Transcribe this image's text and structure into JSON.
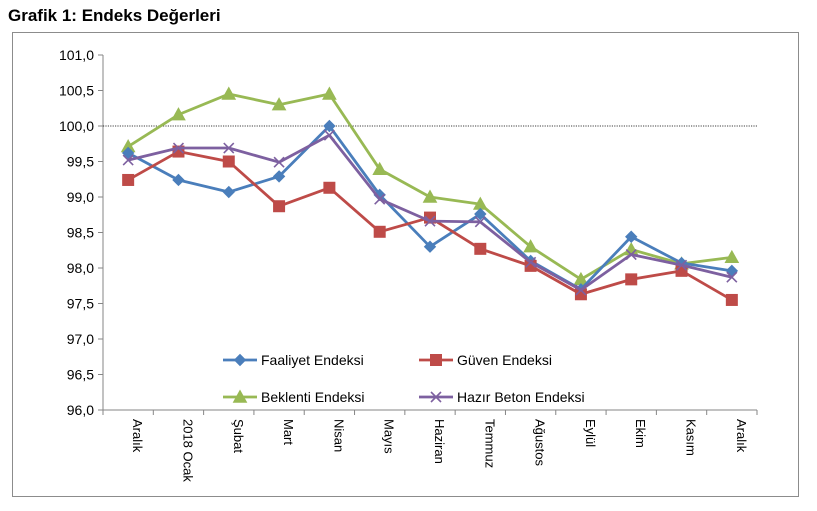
{
  "page_title": "Grafik 1: Endeks Değerleri",
  "chart_data": {
    "type": "line",
    "title": "Grafik 1: Endeks Değerleri",
    "xlabel": "",
    "ylabel": "",
    "ylim": [
      96.0,
      101.0
    ],
    "y_ticks": [
      "96,0",
      "96,5",
      "97,0",
      "97,5",
      "98,0",
      "98,5",
      "99,0",
      "99,5",
      "100,0",
      "100,5",
      "101,0"
    ],
    "reference_line": 100.0,
    "categories": [
      "Aralık",
      "2018 Ocak",
      "Şubat",
      "Mart",
      "Nisan",
      "Mayıs",
      "Haziran",
      "Temmuz",
      "Ağustos",
      "Eylül",
      "Ekim",
      "Kasım",
      "Aralık"
    ],
    "legend_position": "inside-bottom",
    "series": [
      {
        "name": "Faaliyet Endeksi",
        "color": "#4a7ebb",
        "marker": "diamond",
        "values": [
          99.62,
          99.24,
          99.07,
          99.29,
          100.0,
          99.03,
          98.3,
          98.76,
          98.1,
          97.7,
          98.44,
          98.07,
          97.96
        ]
      },
      {
        "name": "Güven Endeksi",
        "color": "#be4b48",
        "marker": "square",
        "values": [
          99.24,
          99.64,
          99.5,
          98.87,
          99.13,
          98.51,
          98.71,
          98.27,
          98.03,
          97.63,
          97.84,
          97.96,
          97.55
        ]
      },
      {
        "name": "Beklenti Endeksi",
        "color": "#98b954",
        "marker": "triangle",
        "values": [
          99.71,
          100.16,
          100.45,
          100.3,
          100.45,
          99.39,
          99.0,
          98.9,
          98.3,
          97.84,
          98.26,
          98.06,
          98.15
        ]
      },
      {
        "name": "Hazır Beton Endeksi",
        "color": "#7d60a0",
        "marker": "x",
        "values": [
          99.52,
          99.69,
          99.69,
          99.49,
          99.87,
          98.97,
          98.66,
          98.65,
          98.08,
          97.69,
          98.19,
          98.04,
          97.87
        ]
      }
    ]
  }
}
